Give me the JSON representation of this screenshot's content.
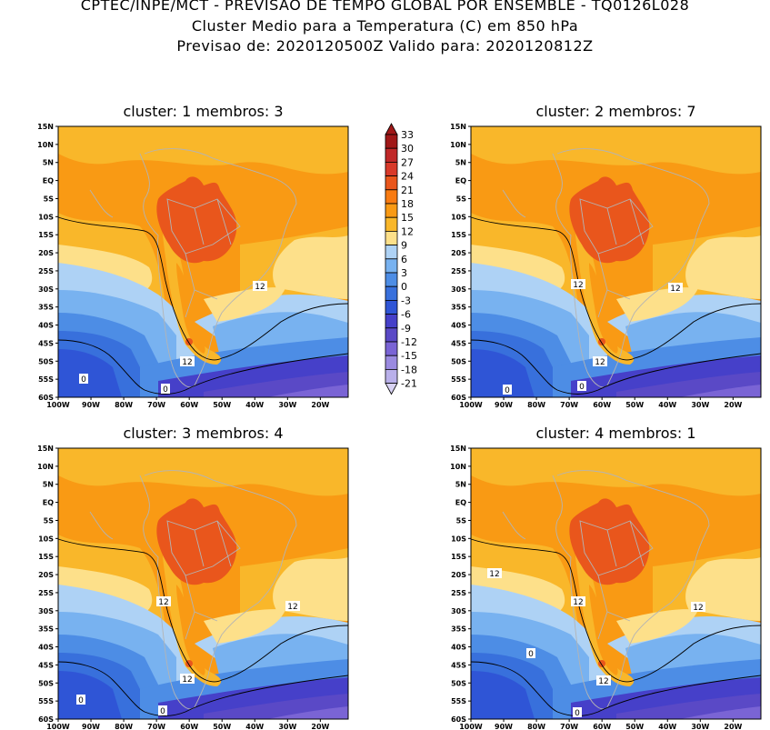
{
  "header": {
    "line1": "CPTEC/INPE/MCT - PREVISAO DE TEMPO GLOBAL POR ENSEMBLE - TQ0126L028",
    "line2": "Cluster Medio para a Temperatura (C) em 850 hPa",
    "line3": "Previsao de: 2020120500Z   Valido para: 2020120812Z"
  },
  "panels": [
    {
      "title": "cluster: 1  membros: 3",
      "contour_labels": [
        "12",
        "12",
        "0",
        "0"
      ]
    },
    {
      "title": "cluster: 2  membros: 7",
      "contour_labels": [
        "12",
        "12",
        "12",
        "0",
        "0"
      ]
    },
    {
      "title": "cluster: 3  membros: 4",
      "contour_labels": [
        "12",
        "12",
        "12",
        "0",
        "0"
      ]
    },
    {
      "title": "cluster: 4  membros: 1",
      "contour_labels": [
        "12",
        "12",
        "12",
        "12",
        "0",
        "0"
      ]
    }
  ],
  "axes": {
    "lat_ticks": [
      "15N",
      "10N",
      "5N",
      "EQ",
      "5S",
      "10S",
      "15S",
      "20S",
      "25S",
      "30S",
      "35S",
      "40S",
      "45S",
      "50S",
      "55S",
      "60S"
    ],
    "lon_ticks": [
      "100W",
      "90W",
      "80W",
      "70W",
      "60W",
      "50W",
      "40W",
      "30W",
      "20W"
    ]
  },
  "colorbar": {
    "labels": [
      "33",
      "30",
      "27",
      "24",
      "21",
      "18",
      "15",
      "12",
      "9",
      "6",
      "3",
      "0",
      "-3",
      "-6",
      "-9",
      "-12",
      "-15",
      "-18",
      "-21"
    ],
    "colors": [
      "#a01818",
      "#c02828",
      "#d83a2a",
      "#e9561c",
      "#f87b12",
      "#f99a14",
      "#f9b72a",
      "#fde08a",
      "#aed2f5",
      "#78b2f0",
      "#4d8de5",
      "#3870dc",
      "#2f55d6",
      "#4640c9",
      "#5a49c6",
      "#7a64d5",
      "#9a8ae0",
      "#b9b0ea",
      "#d8d2f3"
    ]
  }
}
